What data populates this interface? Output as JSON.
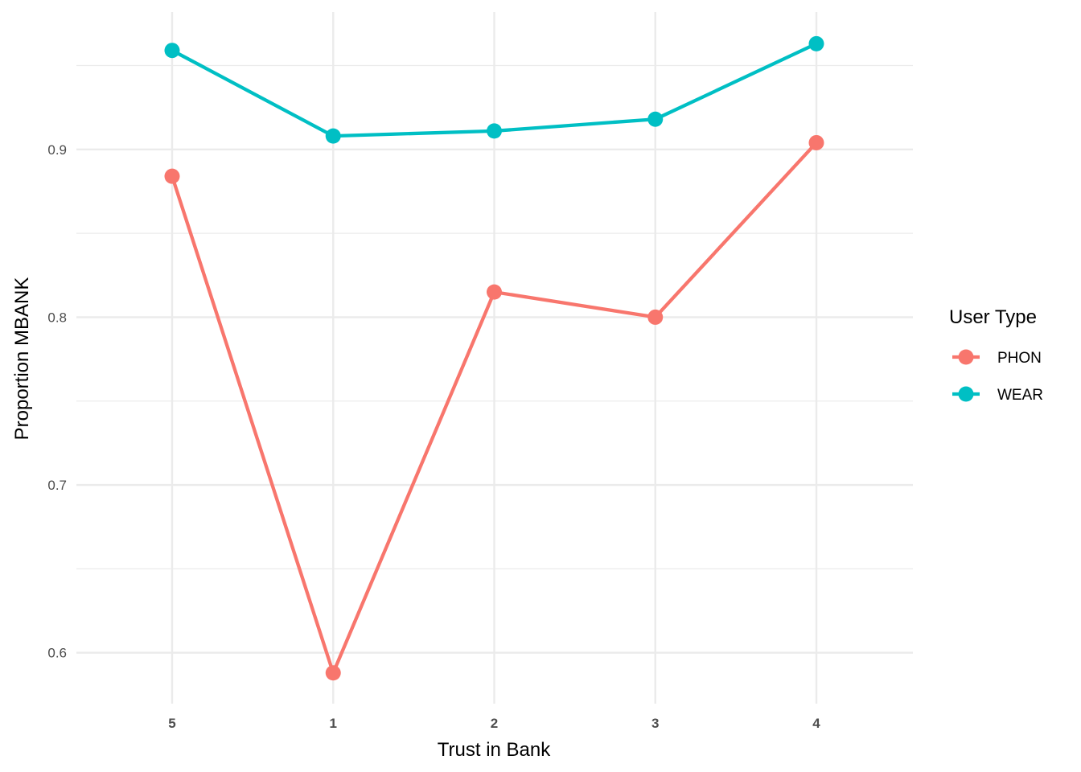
{
  "chart_data": {
    "type": "line",
    "xlabel": "Trust in Bank",
    "ylabel": "Proportion MBANK",
    "categories": [
      "5",
      "1",
      "2",
      "3",
      "4"
    ],
    "ylim": [
      0.57,
      0.975
    ],
    "yticks": [
      "0.6",
      "0.7",
      "0.8",
      "0.9"
    ],
    "grid": true,
    "legend": {
      "title": "User Type",
      "position": "right"
    },
    "series": [
      {
        "name": "PHON",
        "color": "#F8766D",
        "values": [
          0.884,
          0.588,
          0.815,
          0.8,
          0.904
        ]
      },
      {
        "name": "WEAR",
        "color": "#00BFC4",
        "values": [
          0.959,
          0.908,
          0.911,
          0.918,
          0.963
        ]
      }
    ]
  }
}
